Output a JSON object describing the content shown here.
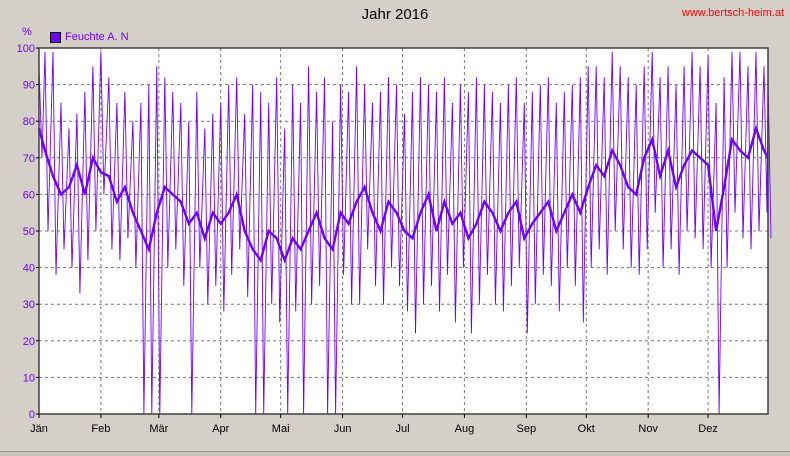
{
  "header": {
    "title": "Jahr 2016",
    "watermark": "www.bertsch-heim.at"
  },
  "colors": {
    "series": "#7000ff",
    "grid": "#808080",
    "plot_bg": "#ffffff",
    "watermark": "#ff0000"
  },
  "chart_data": {
    "type": "line",
    "title": "Jahr 2016",
    "ylabel": "%",
    "ylim": [
      0,
      100
    ],
    "yticks": [
      0,
      10,
      20,
      30,
      40,
      50,
      60,
      70,
      80,
      90,
      100
    ],
    "xlim": [
      "2016-01-01",
      "2016-12-31"
    ],
    "xticks": [
      {
        "date": "2016-01-01",
        "label": "Jän"
      },
      {
        "date": "2016-02-01",
        "label": "Feb"
      },
      {
        "date": "2016-03-01",
        "label": "Mär"
      },
      {
        "date": "2016-04-01",
        "label": "Apr"
      },
      {
        "date": "2016-05-01",
        "label": "Mai"
      },
      {
        "date": "2016-06-01",
        "label": "Jun"
      },
      {
        "date": "2016-07-01",
        "label": "Jul"
      },
      {
        "date": "2016-08-01",
        "label": "Aug"
      },
      {
        "date": "2016-09-01",
        "label": "Sep"
      },
      {
        "date": "2016-10-01",
        "label": "Okt"
      },
      {
        "date": "2016-11-01",
        "label": "Nov"
      },
      {
        "date": "2016-12-01",
        "label": "Dez"
      }
    ],
    "grid": true,
    "legend": "top-left",
    "series": [
      {
        "name": "Feuchte A. N",
        "x": [
          "2016-01-01",
          "2016-01-04",
          "2016-01-08",
          "2016-01-12",
          "2016-01-16",
          "2016-01-20",
          "2016-01-24",
          "2016-01-28",
          "2016-02-01",
          "2016-02-05",
          "2016-02-09",
          "2016-02-13",
          "2016-02-17",
          "2016-02-21",
          "2016-02-25",
          "2016-02-29",
          "2016-03-04",
          "2016-03-08",
          "2016-03-12",
          "2016-03-16",
          "2016-03-20",
          "2016-03-24",
          "2016-03-28",
          "2016-04-01",
          "2016-04-05",
          "2016-04-09",
          "2016-04-13",
          "2016-04-17",
          "2016-04-21",
          "2016-04-25",
          "2016-04-29",
          "2016-05-03",
          "2016-05-07",
          "2016-05-11",
          "2016-05-15",
          "2016-05-19",
          "2016-05-23",
          "2016-05-27",
          "2016-05-31",
          "2016-06-04",
          "2016-06-08",
          "2016-06-12",
          "2016-06-16",
          "2016-06-20",
          "2016-06-24",
          "2016-06-28",
          "2016-07-02",
          "2016-07-06",
          "2016-07-10",
          "2016-07-14",
          "2016-07-18",
          "2016-07-22",
          "2016-07-26",
          "2016-07-30",
          "2016-08-03",
          "2016-08-07",
          "2016-08-11",
          "2016-08-15",
          "2016-08-19",
          "2016-08-23",
          "2016-08-27",
          "2016-08-31",
          "2016-09-04",
          "2016-09-08",
          "2016-09-12",
          "2016-09-16",
          "2016-09-20",
          "2016-09-24",
          "2016-09-28",
          "2016-10-02",
          "2016-10-06",
          "2016-10-10",
          "2016-10-14",
          "2016-10-18",
          "2016-10-22",
          "2016-10-26",
          "2016-10-30",
          "2016-11-03",
          "2016-11-07",
          "2016-11-11",
          "2016-11-15",
          "2016-11-19",
          "2016-11-23",
          "2016-11-27",
          "2016-12-01",
          "2016-12-05",
          "2016-12-09",
          "2016-12-13",
          "2016-12-17",
          "2016-12-21",
          "2016-12-25",
          "2016-12-29",
          "2016-12-31"
        ],
        "min": [
          70,
          50,
          38,
          45,
          40,
          33,
          42,
          50,
          60,
          45,
          42,
          48,
          40,
          0,
          0,
          0,
          40,
          45,
          35,
          0,
          40,
          30,
          35,
          28,
          38,
          45,
          32,
          0,
          0,
          30,
          25,
          0,
          28,
          0,
          30,
          35,
          0,
          0,
          38,
          30,
          30,
          45,
          35,
          30,
          40,
          35,
          28,
          22,
          30,
          35,
          28,
          38,
          25,
          40,
          22,
          30,
          38,
          30,
          28,
          35,
          40,
          22,
          30,
          38,
          35,
          28,
          40,
          35,
          25,
          40,
          45,
          38,
          50,
          45,
          40,
          38,
          45,
          55,
          40,
          45,
          38,
          50,
          48,
          45,
          40,
          0,
          40,
          55,
          48,
          45,
          50,
          55,
          48
        ],
        "mean": [
          78,
          72,
          65,
          60,
          62,
          68,
          60,
          70,
          66,
          65,
          58,
          62,
          55,
          50,
          45,
          55,
          62,
          60,
          58,
          52,
          55,
          48,
          55,
          52,
          55,
          60,
          50,
          45,
          42,
          50,
          48,
          42,
          48,
          45,
          50,
          55,
          48,
          45,
          55,
          52,
          58,
          62,
          55,
          50,
          58,
          55,
          50,
          48,
          55,
          60,
          50,
          58,
          52,
          55,
          48,
          52,
          58,
          55,
          50,
          55,
          58,
          48,
          52,
          55,
          58,
          50,
          55,
          60,
          55,
          62,
          68,
          65,
          72,
          68,
          62,
          60,
          70,
          75,
          65,
          72,
          62,
          68,
          72,
          70,
          68,
          50,
          62,
          75,
          72,
          70,
          78,
          72,
          70
        ],
        "max": [
          95,
          99,
          99,
          85,
          78,
          82,
          88,
          95,
          99,
          92,
          85,
          88,
          80,
          85,
          90,
          95,
          92,
          88,
          85,
          80,
          88,
          78,
          82,
          85,
          90,
          92,
          82,
          90,
          88,
          85,
          92,
          78,
          90,
          85,
          95,
          88,
          92,
          80,
          90,
          88,
          95,
          90,
          85,
          88,
          92,
          90,
          82,
          88,
          92,
          90,
          88,
          92,
          85,
          90,
          88,
          92,
          90,
          88,
          85,
          90,
          92,
          85,
          88,
          90,
          92,
          85,
          88,
          90,
          92,
          95,
          95,
          92,
          99,
          95,
          92,
          90,
          95,
          99,
          92,
          95,
          90,
          95,
          99,
          95,
          98,
          85,
          92,
          99,
          99,
          95,
          99,
          95,
          92
        ]
      }
    ]
  },
  "legend": {
    "label": "Feuchte A. N",
    "unit": "%"
  }
}
